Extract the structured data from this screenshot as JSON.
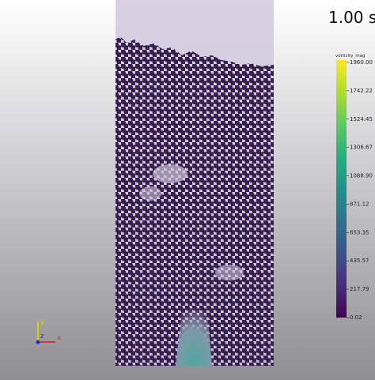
{
  "time_label": "1.00 s",
  "colorbar": {
    "title": "vorticity_mag",
    "ticks": [
      "1960.00",
      "1742.22",
      "1524.45",
      "1306.67",
      "1088.90",
      "871.12",
      "653.35",
      "435.57",
      "217.79",
      "0.02"
    ]
  },
  "axes": {
    "x": "x",
    "y": "y",
    "z": "z"
  }
}
